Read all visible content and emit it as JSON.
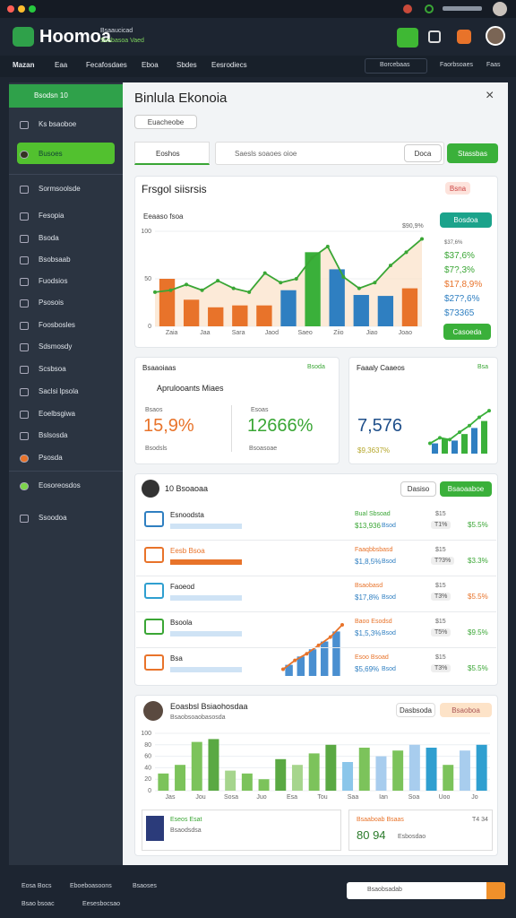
{
  "header": {
    "logo": "Hoomoa",
    "tagline": "Bsaaucicad",
    "tagline2": "Sosbasoa Vaed"
  },
  "nav": {
    "items": [
      "Mazan",
      "Eaa",
      "Fecafosdaes",
      "Eboa",
      "Sbdes",
      "Eesrodiecs"
    ],
    "search": "Borcebaas",
    "right": [
      "Faorbsoaes",
      "Faas"
    ]
  },
  "sidebar": {
    "header": "Bsodsn 10",
    "items": [
      "Ks bsaoboe",
      "Busoes",
      "Sormsoolsde",
      "Fesopia",
      "Bsoda",
      "Bsobsaab",
      "Fuodsios",
      "Psosois",
      "Foosbosles",
      "Sdsmosdy",
      "Scsbsoa",
      "Saclsi lpsola",
      "Eoelbsgiwa",
      "Bslsosda",
      "Psosda",
      "Eosoreosdos",
      "Ssoodoa"
    ]
  },
  "main": {
    "title": "Binlula Ekonoia",
    "tab": "Euacheobe",
    "filter": "Eoshos",
    "search": "Saesls soaoes oioe",
    "button1": "Doca",
    "button2": "Stassbas"
  },
  "trend_card": {
    "title": "Frsgol siisrsis",
    "subtitle": "Eeaaso fsoa",
    "badge": "Bsna",
    "button": "Bosdoa",
    "peak": "$90,9%",
    "stats": [
      "$37,6%",
      "$7?,3%",
      "$17,8,9%",
      "$27?,6%",
      "$73365"
    ],
    "action": "Casoeda"
  },
  "apps_card": {
    "title": "Bsaaoiaas",
    "tag": "Bsoda",
    "subtitle": "Aprulooants Miaes",
    "left_label": "Bsaos",
    "left_value": "15,9%",
    "left_sub": "Bsodsls",
    "right_label": "Esoas",
    "right_value": "12666%",
    "right_sub": "Bsoasoae"
  },
  "family_card": {
    "title": "Faaaly Caaeos",
    "tag": "Bsa",
    "value": "7,576",
    "sub": "$9,3637%"
  },
  "list_card": {
    "title": "10 Bsoaoaa",
    "button1": "Dasiso",
    "button2": "Bsaoaaboe",
    "rows": [
      {
        "name": "Esnoodsta",
        "metric": "Bual Sbsoad",
        "value": "$13,936",
        "unit": "Bsod",
        "small": "$15",
        "tag": "T1%",
        "pct": "$5.5%"
      },
      {
        "name": "Eesb Bsoa",
        "metric": "Faaqbbsbasd",
        "value": "$1,8,5%",
        "unit": "Bsod",
        "small": "$15",
        "tag": "T?3%",
        "pct": "$3.3%"
      },
      {
        "name": "Faoeod",
        "metric": "Bsaobasd",
        "value": "$17,8%",
        "unit": "Bsod",
        "small": "$15",
        "tag": "T3%",
        "pct": "$5.5%"
      },
      {
        "name": "Bsoola",
        "metric": "Baoo Esodsd",
        "value": "$1,5,3%",
        "unit": "Bsod",
        "small": "$15",
        "tag": "T5%",
        "pct": "$9.5%"
      },
      {
        "name": "Bsa",
        "metric": "Esoo Bsoad",
        "value": "$5,69%",
        "unit": "Bsod",
        "small": "$15",
        "tag": "T3%",
        "pct": "$5.5%"
      }
    ]
  },
  "dist_card": {
    "title": "Eoasbsl Bsiaohosdaa",
    "subtitle": "Bsaobsoaobasosda",
    "button1": "Dasbsoda",
    "button2": "Bsaoboa",
    "sub_left": {
      "title": "Eseos Esat",
      "sub": "Bsaodsdsa"
    },
    "sub_right": {
      "title": "Bsaaboab Bsaas",
      "value": "80 94",
      "sub": "Esbosdao",
      "tag": "T4 34"
    }
  },
  "footer": {
    "left": [
      "Eosa Bocs",
      "Eboeboasoons",
      "Bsaoses"
    ],
    "left2": [
      "Bsao bsoac",
      "Eesesbocsao"
    ],
    "search": "Bsaobsadab"
  },
  "charts": {
    "trend": {
      "type": "bar",
      "ylim": [
        0,
        100
      ],
      "yticks": [
        0,
        50,
        100
      ],
      "xlabels": [
        "Zaia",
        "Jaa",
        "Sara",
        "Jaod",
        "Saeo",
        "Ziio",
        "Jiao",
        "Joao"
      ],
      "values": [
        50,
        28,
        20,
        22,
        22,
        38,
        78,
        60,
        33,
        32,
        40
      ],
      "colors": [
        "#e8732a",
        "#e8732a",
        "#e8732a",
        "#e8732a",
        "#e8732a",
        "#2f7fc1",
        "#3ab03a",
        "#2f7fc1",
        "#2f7fc1",
        "#2f7fc1",
        "#e8732a"
      ],
      "line": [
        36,
        38,
        44,
        38,
        48,
        40,
        36,
        56,
        46,
        50,
        72,
        84,
        52,
        40,
        46,
        64,
        78,
        92
      ],
      "line_color": "#3aa635"
    },
    "mini": {
      "type": "bar",
      "ylim": [
        0,
        100
      ],
      "values": [
        22,
        32,
        28,
        42,
        55,
        70
      ],
      "colors": [
        "#2f7fc1",
        "#3ab03a",
        "#2f7fc1",
        "#3ab03a",
        "#2f7fc1",
        "#3ab03a"
      ],
      "line": [
        22,
        34,
        30,
        46,
        60,
        78,
        92
      ],
      "line_color": "#3ab03a"
    },
    "rows": {
      "type": "bar",
      "ylim": [
        0,
        100
      ],
      "values": [
        20,
        35,
        48,
        62,
        80
      ],
      "colors": [
        "#4a8fd0",
        "#4a8fd0",
        "#4a8fd0",
        "#4a8fd0",
        "#4a8fd0"
      ],
      "line": [
        12,
        28,
        40,
        55,
        70,
        92
      ],
      "line_color": "#e8732a"
    },
    "dist": {
      "type": "bar",
      "ylim": [
        0,
        100
      ],
      "yticks": [
        0,
        20,
        40,
        60,
        80,
        100
      ],
      "xlabels": [
        "Jas",
        "Jou",
        "Sosa",
        "Juo",
        "Esa",
        "Tou",
        "Saa",
        "Ian",
        "Soa",
        "Uoo",
        "Jo"
      ],
      "values": [
        30,
        45,
        85,
        90,
        35,
        30,
        20,
        55,
        45,
        65,
        80,
        50,
        75,
        60,
        70,
        80,
        75,
        45,
        70,
        80
      ],
      "colors": [
        "#7cc35b",
        "#7cc35b",
        "#7cc35b",
        "#5aa943",
        "#a6d58d",
        "#7cc35b",
        "#7cc35b",
        "#5aa943",
        "#a6d58d",
        "#7cc35b",
        "#5aa943",
        "#8bc6ea",
        "#7cc35b",
        "#a8cdee",
        "#7cc35b",
        "#a8cdee",
        "#2f9fd0",
        "#7cc35b",
        "#a8cdee",
        "#2f9fd0"
      ]
    }
  }
}
